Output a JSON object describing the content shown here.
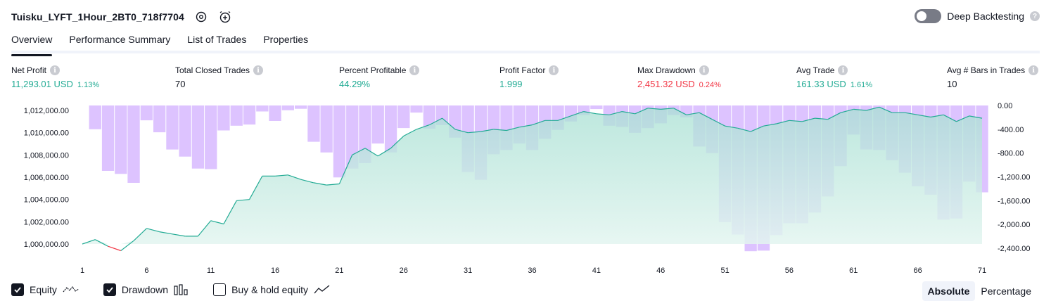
{
  "header": {
    "title": "Tuisku_LYFT_1Hour_2BT0_718f7704",
    "deep_backtesting_label": "Deep Backtesting",
    "deep_backtesting_enabled": false
  },
  "tabs": [
    {
      "label": "Overview",
      "active": true
    },
    {
      "label": "Performance Summary",
      "active": false
    },
    {
      "label": "List of Trades",
      "active": false
    },
    {
      "label": "Properties",
      "active": false
    }
  ],
  "metrics": {
    "net_profit": {
      "label": "Net Profit",
      "value": "11,293.01 USD",
      "pct": "1.13%"
    },
    "total_closed_trades": {
      "label": "Total Closed Trades",
      "value": "70"
    },
    "percent_profitable": {
      "label": "Percent Profitable",
      "value": "44.29%"
    },
    "profit_factor": {
      "label": "Profit Factor",
      "value": "1.999"
    },
    "max_drawdown": {
      "label": "Max Drawdown",
      "value": "2,451.32 USD",
      "pct": "0.24%"
    },
    "avg_trade": {
      "label": "Avg Trade",
      "value": "161.33 USD",
      "pct": "1.61%"
    },
    "avg_bars": {
      "label": "Avg # Bars in Trades",
      "value": "10"
    }
  },
  "colors": {
    "equity_line": "#22ab94",
    "equity_fill": "#c6ebe3",
    "equity_negative": "#f23645",
    "drawdown_bar": "#d7b9ff",
    "green": "#22ab94",
    "red": "#f23645"
  },
  "chart_data": {
    "type": "line",
    "x_ticks": [
      "1",
      "6",
      "11",
      "16",
      "21",
      "26",
      "31",
      "36",
      "41",
      "46",
      "51",
      "56",
      "61",
      "66",
      "71"
    ],
    "left_axis_ticks": [
      "1,012,000.00",
      "1,010,000.00",
      "1,008,000.00",
      "1,006,000.00",
      "1,004,000.00",
      "1,002,000.00",
      "1,000,000.00"
    ],
    "right_axis_ticks": [
      "0.00",
      "-400.00",
      "-800.00",
      "-1,200.00",
      "-1,600.00",
      "-2,000.00",
      "-2,400.00"
    ],
    "left_ylim": [
      1000000,
      1012000
    ],
    "right_ylim": [
      -2400,
      0
    ],
    "xlim": [
      1,
      71
    ],
    "series": [
      {
        "name": "Equity",
        "values": [
          1000000,
          1000400,
          999800,
          999400,
          1000300,
          1001400,
          1001100,
          1000900,
          1000700,
          1000700,
          1002100,
          1001800,
          1003900,
          1004000,
          1006100,
          1006100,
          1006200,
          1005800,
          1005500,
          1005300,
          1005400,
          1008000,
          1008600,
          1007900,
          1008600,
          1009700,
          1010300,
          1010700,
          1011300,
          1010300,
          1010000,
          1010100,
          1010300,
          1010200,
          1010500,
          1010700,
          1011100,
          1011100,
          1011500,
          1011900,
          1011700,
          1011600,
          1011900,
          1011700,
          1012200,
          1012100,
          1012200,
          1011600,
          1011800,
          1011200,
          1010600,
          1010400,
          1010100,
          1010600,
          1010800,
          1011100,
          1011000,
          1011300,
          1011200,
          1011800,
          1012100,
          1012000,
          1012300,
          1011800,
          1011800,
          1011600,
          1011400,
          1011600,
          1011000,
          1011500,
          1011300
        ]
      },
      {
        "name": "Drawdown",
        "values": [
          0,
          -400,
          -1100,
          -1150,
          -1300,
          -250,
          -450,
          -740,
          -860,
          -1060,
          -1070,
          -420,
          -340,
          -320,
          -100,
          -260,
          -80,
          -55,
          -610,
          -790,
          -1210,
          -1060,
          -970,
          -640,
          -790,
          -380,
          -120,
          -390,
          -330,
          -540,
          -1120,
          -1250,
          -820,
          -750,
          -640,
          -750,
          -560,
          -410,
          -270,
          -160,
          -60,
          -340,
          -360,
          -460,
          -380,
          -300,
          -160,
          -200,
          -690,
          -800,
          -1960,
          -2170,
          -2450,
          -2440,
          -2180,
          -1980,
          -1980,
          -1800,
          -1530,
          -1020,
          -490,
          -740,
          -750,
          -920,
          -1130,
          -1360,
          -1500,
          -1920,
          -1900,
          -1280,
          -1460
        ]
      }
    ],
    "legend": [
      "Equity",
      "Drawdown",
      "Buy & hold equity"
    ],
    "grid": false
  },
  "legend": {
    "equity_label": "Equity",
    "equity_checked": true,
    "drawdown_label": "Drawdown",
    "drawdown_checked": true,
    "buyhold_label": "Buy & hold equity",
    "buyhold_checked": false
  },
  "mode": {
    "absolute_label": "Absolute",
    "percentage_label": "Percentage",
    "active": "Absolute"
  },
  "icons": {
    "settings": "gear-icon",
    "alert": "alarm-clock-plus-icon",
    "info": "info-icon",
    "help": "question-icon",
    "checkbox": "checkmark-icon"
  }
}
